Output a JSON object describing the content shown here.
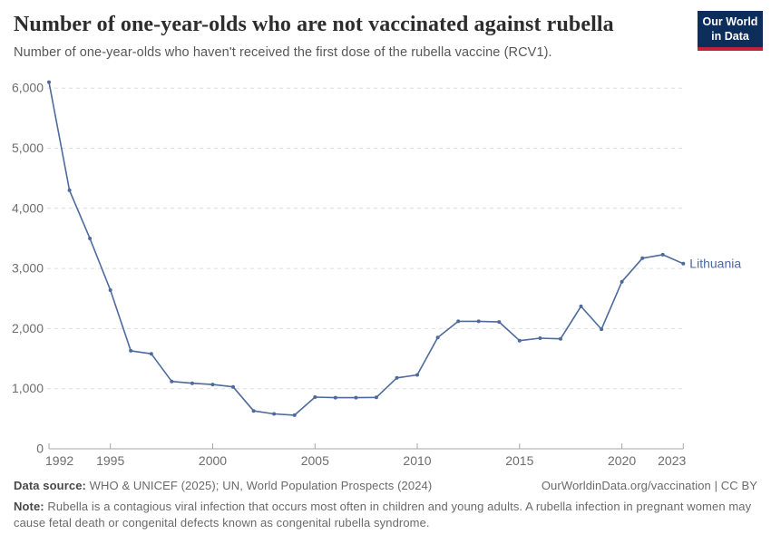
{
  "header": {
    "title": "Number of one-year-olds who are not vaccinated against rubella",
    "subtitle": "Number of one-year-olds who haven't received the first dose of the rubella vaccine (RCV1).",
    "logo": {
      "line1": "Our World",
      "line2": "in Data"
    }
  },
  "chart_data": {
    "type": "line",
    "title": "Number of one-year-olds who are not vaccinated against rubella",
    "x": [
      1992,
      1993,
      1994,
      1995,
      1996,
      1997,
      1998,
      1999,
      2000,
      2001,
      2002,
      2003,
      2004,
      2005,
      2006,
      2007,
      2008,
      2009,
      2010,
      2011,
      2012,
      2013,
      2014,
      2015,
      2016,
      2017,
      2018,
      2019,
      2020,
      2021,
      2022,
      2023
    ],
    "series": [
      {
        "name": "Lithuania",
        "color": "#4c6a9c",
        "values": [
          6100,
          4300,
          3500,
          2640,
          1630,
          1580,
          1120,
          1090,
          1070,
          1030,
          630,
          580,
          560,
          860,
          850,
          850,
          855,
          1180,
          1230,
          1850,
          2120,
          2120,
          2110,
          1800,
          1840,
          1830,
          2370,
          1990,
          2780,
          3170,
          3230,
          3080
        ]
      }
    ],
    "x_ticks": [
      1992,
      1995,
      2000,
      2005,
      2010,
      2015,
      2020,
      2023
    ],
    "y_ticks": [
      0,
      1000,
      2000,
      3000,
      4000,
      5000,
      6000
    ],
    "xlim": [
      1992,
      2023
    ],
    "ylim": [
      0,
      6200
    ],
    "xlabel": "",
    "ylabel": "",
    "grid": "horizontal-dashed",
    "legend_position": "end-of-line"
  },
  "colors": {
    "line": "#4c6a9c",
    "axis": "#a7a7a7",
    "gridline": "#dedede",
    "logo_bg": "#0d2e5b",
    "logo_red": "#c0243a"
  },
  "footer": {
    "data_source_label": "Data source:",
    "data_source_value": " WHO & UNICEF (2025); UN, World Population Prospects (2024)",
    "link_text": "OurWorldinData.org/vaccination | CC BY",
    "note_label": "Note:",
    "note_text": " Rubella is a contagious viral infection that occurs most often in children and young adults. A rubella infection in pregnant women may cause fetal death or congenital defects known as congenital rubella syndrome."
  }
}
